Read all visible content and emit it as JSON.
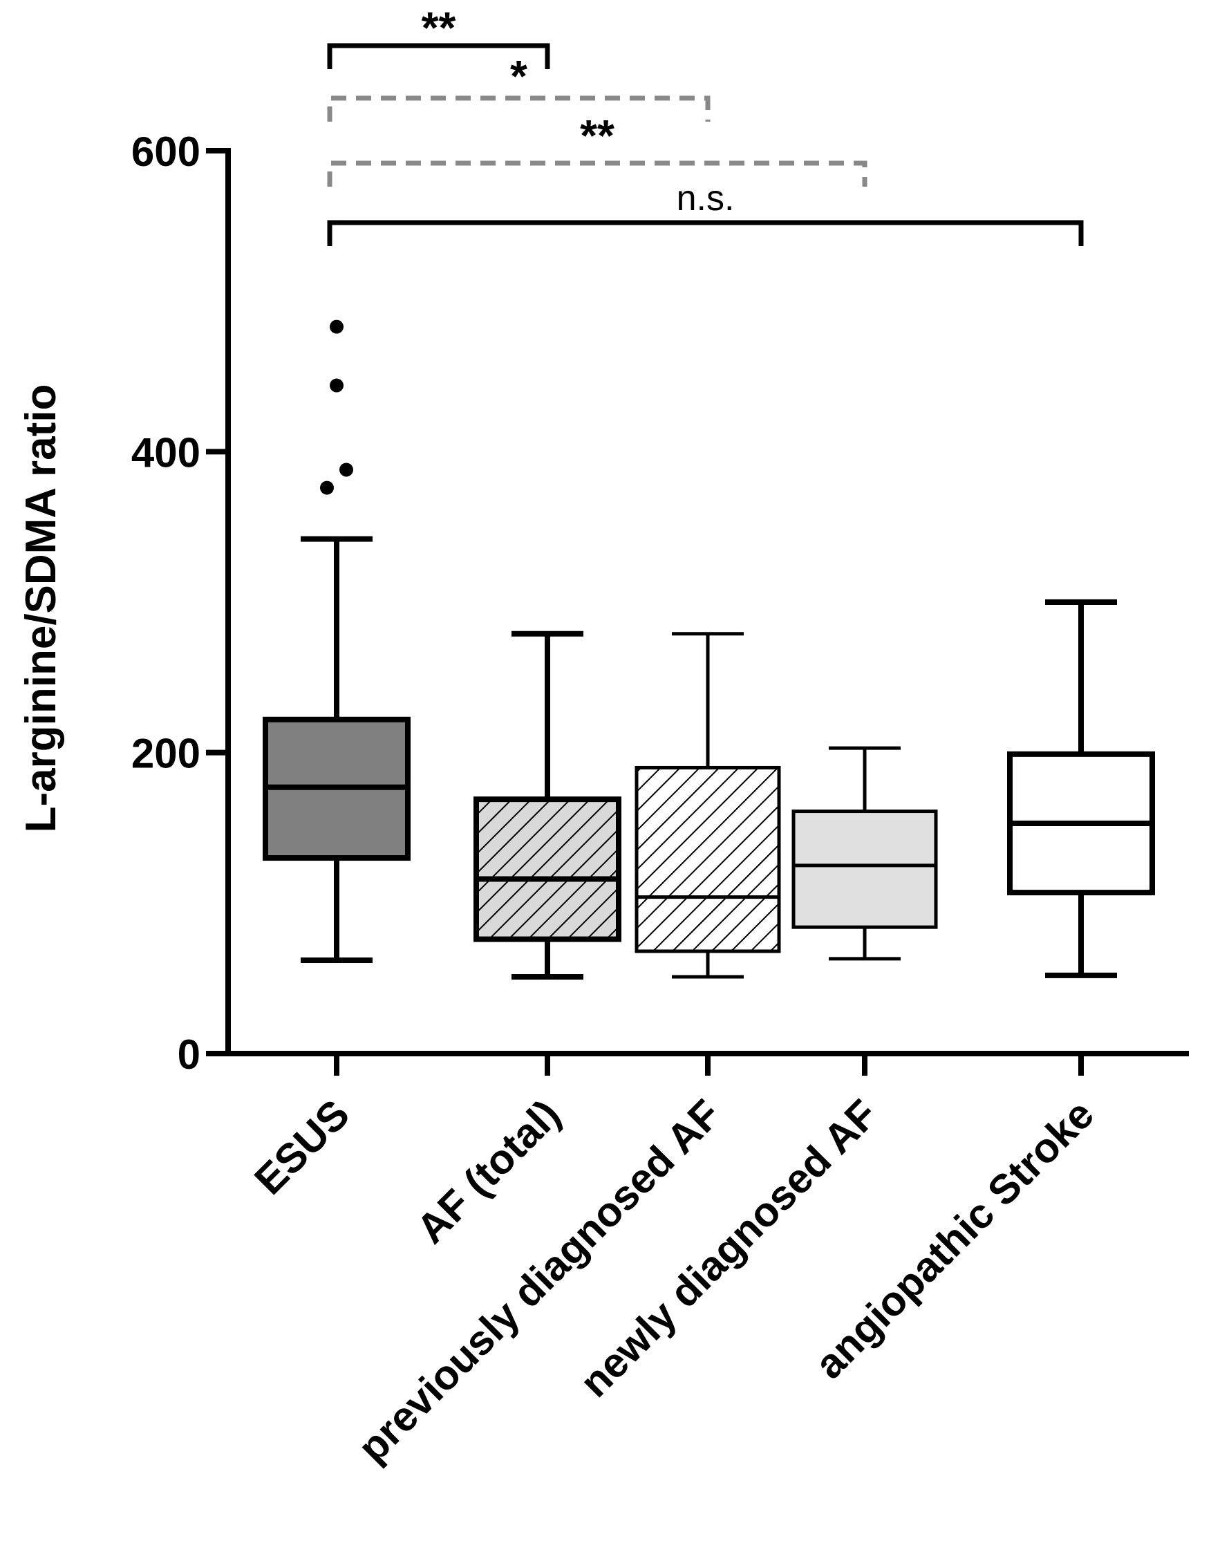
{
  "chart_data": {
    "type": "boxplot",
    "title": "",
    "xlabel": "",
    "ylabel": "L-arginine/SDMA ratio",
    "ylim": [
      0,
      600
    ],
    "yticks": [
      0,
      200,
      400,
      600
    ],
    "categories": [
      "ESUS",
      "AF (total)",
      "previously diagnosed AF",
      "newly diagnosed AF",
      "angiopathic Stroke"
    ],
    "boxes": [
      {
        "category": "ESUS",
        "whisker_low": 62,
        "q1": 130,
        "median": 177,
        "q3": 222,
        "whisker_high": 342,
        "outliers": [
          376,
          388,
          444,
          483
        ],
        "fill": "dark-gray",
        "color": "#808080",
        "pattern": "solid"
      },
      {
        "category": "AF (total)",
        "whisker_low": 51,
        "q1": 76,
        "median": 116,
        "q3": 169,
        "whisker_high": 279,
        "outliers": [],
        "fill": "hatched-gray",
        "color": "#d9d9d9",
        "pattern": "hatch"
      },
      {
        "category": "previously diagnosed AF",
        "whisker_low": 51,
        "q1": 68,
        "median": 104,
        "q3": 190,
        "whisker_high": 279,
        "outliers": [],
        "fill": "hatched-white",
        "color": "#ffffff",
        "pattern": "hatch"
      },
      {
        "category": "newly diagnosed AF",
        "whisker_low": 63,
        "q1": 84,
        "median": 125,
        "q3": 161,
        "whisker_high": 203,
        "outliers": [],
        "fill": "light-gray",
        "color": "#e0e0e0",
        "pattern": "solid"
      },
      {
        "category": "angiopathic Stroke",
        "whisker_low": 52,
        "q1": 107,
        "median": 153,
        "q3": 199,
        "whisker_high": 300,
        "outliers": [],
        "fill": "white",
        "color": "#ffffff",
        "pattern": "solid"
      }
    ],
    "significance": [
      {
        "from": "ESUS",
        "to": "AF (total)",
        "label": "**",
        "style": "solid",
        "color": "#000000"
      },
      {
        "from": "ESUS",
        "to": "previously diagnosed AF",
        "label": "*",
        "style": "dashed",
        "color": "#888888"
      },
      {
        "from": "ESUS",
        "to": "newly diagnosed AF",
        "label": "**",
        "style": "dashed",
        "color": "#888888"
      },
      {
        "from": "ESUS",
        "to": "angiopathic Stroke",
        "label": "n.s.",
        "style": "solid",
        "color": "#000000"
      }
    ]
  }
}
